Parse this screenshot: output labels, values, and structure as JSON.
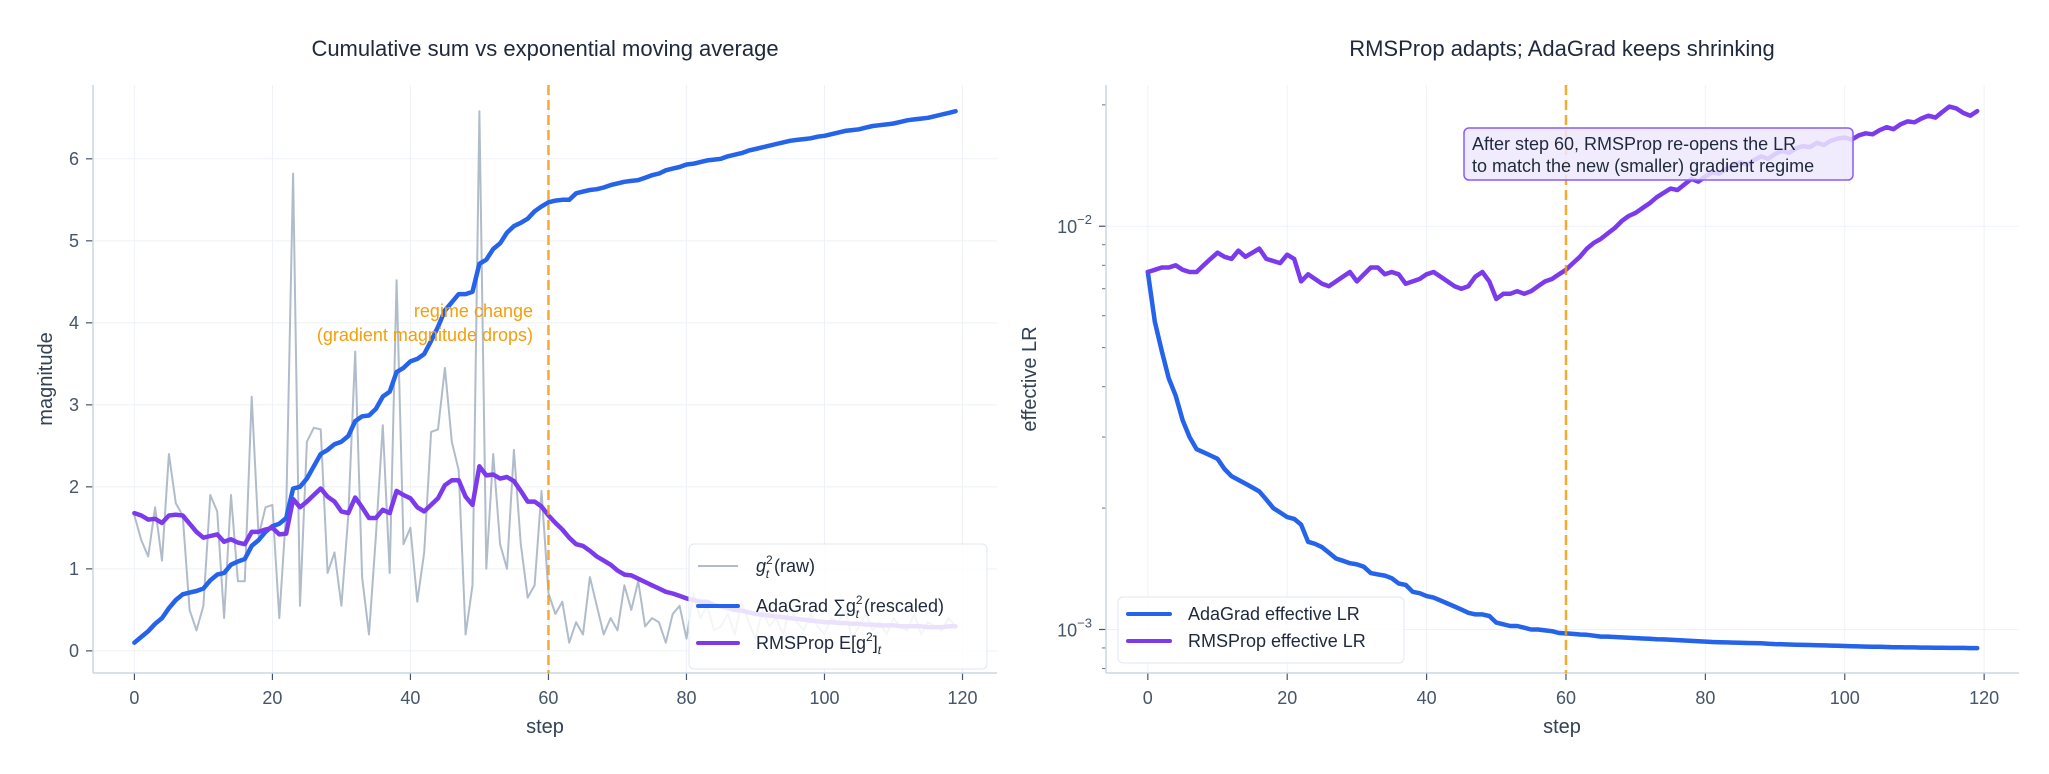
{
  "colors": {
    "raw": "#b1bccb",
    "adagrad": "#2563eb",
    "rmsprop": "#7c3aed",
    "regime": "#f59e0b",
    "grid": "#eef2f7",
    "axis": "#cbd5e1"
  },
  "chart_data": [
    {
      "type": "line",
      "title": "Cumulative sum vs exponential moving average",
      "xlabel": "step",
      "ylabel": "magnitude",
      "xlim": [
        -6,
        125
      ],
      "ylim": [
        -0.27,
        6.9
      ],
      "xticks": [
        0,
        20,
        40,
        60,
        80,
        100,
        120
      ],
      "yticks": [
        0,
        1,
        2,
        3,
        4,
        5,
        6
      ],
      "grid": true,
      "legend_position": "lower-right",
      "vline": {
        "x": 60,
        "label_line1": "regime change",
        "label_line2": "(gradient magnitude drops)"
      },
      "series": [
        {
          "name": "g_t^2 (raw)",
          "legend_main": "g",
          "legend_sup": "2",
          "legend_sub": "t",
          "legend_rest": " (raw)",
          "color_key": "raw",
          "values": [
            1.65,
            1.35,
            1.15,
            1.75,
            1.1,
            2.4,
            1.8,
            1.65,
            0.5,
            0.25,
            0.55,
            1.9,
            1.7,
            0.4,
            1.9,
            0.85,
            0.85,
            3.1,
            1.4,
            1.75,
            1.78,
            0.4,
            1.7,
            5.82,
            0.55,
            2.55,
            2.72,
            2.7,
            0.95,
            1.2,
            0.55,
            1.65,
            3.65,
            0.9,
            0.2,
            1.4,
            2.75,
            0.95,
            4.52,
            1.3,
            1.5,
            0.6,
            1.2,
            2.67,
            2.7,
            3.45,
            2.55,
            2.2,
            0.2,
            0.8,
            6.58,
            1.0,
            2.4,
            1.3,
            1.0,
            2.45,
            1.3,
            0.65,
            0.8,
            1.95,
            0.7,
            0.45,
            0.6,
            0.1,
            0.35,
            0.2,
            0.9,
            0.55,
            0.2,
            0.4,
            0.25,
            0.8,
            0.5,
            0.85,
            0.3,
            0.4,
            0.35,
            0.1,
            0.45,
            0.55,
            0.15,
            0.7,
            0.4,
            0.55,
            0.25,
            0.3,
            0.45,
            0.2,
            0.6,
            0.35,
            0.15,
            0.5,
            0.3,
            0.4,
            0.2,
            0.55,
            0.35,
            0.25,
            0.45,
            0.3,
            0.2,
            0.4,
            0.35,
            0.5,
            0.15,
            0.3,
            0.45,
            0.25,
            0.35,
            0.2,
            0.4,
            0.3,
            0.25,
            0.45,
            0.2,
            0.35,
            0.3,
            0.25,
            0.4,
            0.3
          ]
        },
        {
          "name": "AdaGrad ∑g_t^2 (rescaled)",
          "legend_main": "AdaGrad  ∑g",
          "legend_sup": "2",
          "legend_sub": "t",
          "legend_rest": " (rescaled)",
          "color_key": "adagrad",
          "values": [
            0.1,
            0.17,
            0.24,
            0.33,
            0.4,
            0.52,
            0.62,
            0.69,
            0.71,
            0.73,
            0.76,
            0.86,
            0.93,
            0.95,
            1.05,
            1.09,
            1.12,
            1.28,
            1.35,
            1.45,
            1.52,
            1.55,
            1.62,
            1.98,
            2.0,
            2.1,
            2.25,
            2.4,
            2.45,
            2.52,
            2.55,
            2.62,
            2.8,
            2.86,
            2.87,
            2.95,
            3.1,
            3.16,
            3.4,
            3.45,
            3.53,
            3.56,
            3.62,
            3.78,
            3.95,
            4.15,
            4.25,
            4.35,
            4.35,
            4.38,
            4.72,
            4.77,
            4.9,
            4.97,
            5.1,
            5.18,
            5.22,
            5.27,
            5.36,
            5.42,
            5.47,
            5.49,
            5.5,
            5.5,
            5.58,
            5.6,
            5.62,
            5.63,
            5.65,
            5.68,
            5.7,
            5.72,
            5.73,
            5.74,
            5.77,
            5.8,
            5.82,
            5.86,
            5.88,
            5.9,
            5.93,
            5.94,
            5.96,
            5.98,
            5.99,
            6.0,
            6.03,
            6.05,
            6.07,
            6.1,
            6.12,
            6.14,
            6.16,
            6.18,
            6.2,
            6.22,
            6.23,
            6.24,
            6.25,
            6.27,
            6.28,
            6.3,
            6.32,
            6.34,
            6.35,
            6.36,
            6.38,
            6.4,
            6.41,
            6.42,
            6.43,
            6.45,
            6.47,
            6.48,
            6.49,
            6.5,
            6.52,
            6.54,
            6.56,
            6.58
          ]
        },
        {
          "name": "RMSProp E[g^2]_t",
          "legend_main": "RMSProp  E[g",
          "legend_sup": "2",
          "legend_sub": "",
          "legend_rest": "]",
          "legend_tail_sub": "t",
          "color_key": "rmsprop",
          "values": [
            1.68,
            1.65,
            1.6,
            1.61,
            1.56,
            1.65,
            1.66,
            1.65,
            1.55,
            1.45,
            1.38,
            1.4,
            1.42,
            1.33,
            1.36,
            1.32,
            1.3,
            1.45,
            1.45,
            1.48,
            1.5,
            1.42,
            1.43,
            1.85,
            1.75,
            1.82,
            1.9,
            1.98,
            1.88,
            1.82,
            1.7,
            1.68,
            1.87,
            1.75,
            1.62,
            1.62,
            1.72,
            1.68,
            1.95,
            1.9,
            1.86,
            1.75,
            1.7,
            1.78,
            1.86,
            2.02,
            2.08,
            2.08,
            1.88,
            1.78,
            2.25,
            2.14,
            2.15,
            2.1,
            2.12,
            2.07,
            1.95,
            1.82,
            1.82,
            1.76,
            1.65,
            1.56,
            1.48,
            1.38,
            1.3,
            1.28,
            1.22,
            1.15,
            1.1,
            1.05,
            0.98,
            0.93,
            0.92,
            0.88,
            0.84,
            0.8,
            0.76,
            0.72,
            0.7,
            0.67,
            0.64,
            0.62,
            0.6,
            0.6,
            0.56,
            0.54,
            0.52,
            0.5,
            0.49,
            0.47,
            0.45,
            0.44,
            0.43,
            0.42,
            0.41,
            0.4,
            0.39,
            0.38,
            0.37,
            0.36,
            0.35,
            0.35,
            0.34,
            0.34,
            0.33,
            0.33,
            0.32,
            0.32,
            0.31,
            0.31,
            0.31,
            0.3,
            0.3,
            0.3,
            0.3,
            0.29,
            0.29,
            0.29,
            0.3,
            0.3
          ]
        }
      ]
    },
    {
      "type": "line",
      "title": "RMSProp adapts; AdaGrad keeps shrinking",
      "xlabel": "step",
      "ylabel": "effective LR",
      "yscale": "log",
      "xlim": [
        -6,
        125
      ],
      "ylim": [
        0.00078,
        0.0224
      ],
      "xticks": [
        0,
        20,
        40,
        60,
        80,
        100,
        120
      ],
      "yticks": [
        {
          "value": 0.01,
          "base": "10",
          "exp": "−2"
        },
        {
          "value": 0.001,
          "base": "10",
          "exp": "−3"
        }
      ],
      "grid": true,
      "legend_position": "lower-left",
      "vline": {
        "x": 60
      },
      "annotation": {
        "line1": "After step 60, RMSProp re-opens the LR",
        "line2": "to match the new (smaller) gradient regime"
      },
      "series": [
        {
          "name": "AdaGrad effective LR",
          "color_key": "adagrad",
          "values": [
            0.0077,
            0.0058,
            0.0049,
            0.0042,
            0.0038,
            0.0033,
            0.003,
            0.0028,
            0.00275,
            0.0027,
            0.00265,
            0.0025,
            0.0024,
            0.00235,
            0.0023,
            0.00225,
            0.0022,
            0.0021,
            0.002,
            0.00195,
            0.0019,
            0.00188,
            0.00182,
            0.00165,
            0.00163,
            0.0016,
            0.00155,
            0.0015,
            0.00148,
            0.00146,
            0.00145,
            0.00143,
            0.00138,
            0.00137,
            0.00136,
            0.00134,
            0.0013,
            0.00129,
            0.00124,
            0.00123,
            0.00121,
            0.0012,
            0.00118,
            0.00116,
            0.00114,
            0.00112,
            0.0011,
            0.00109,
            0.00109,
            0.00108,
            0.00104,
            0.00103,
            0.00102,
            0.00102,
            0.00101,
            0.001,
            0.001,
            0.000995,
            0.00099,
            0.00098,
            0.000978,
            0.000975,
            0.000972,
            0.00097,
            0.000965,
            0.00096,
            0.00096,
            0.000958,
            0.000956,
            0.000954,
            0.000952,
            0.00095,
            0.000948,
            0.000946,
            0.000945,
            0.000943,
            0.000941,
            0.000939,
            0.000937,
            0.000935,
            0.000933,
            0.000931,
            0.00093,
            0.000929,
            0.000928,
            0.000927,
            0.000926,
            0.000925,
            0.000924,
            0.000922,
            0.00092,
            0.000919,
            0.000918,
            0.000917,
            0.000916,
            0.000915,
            0.000914,
            0.000913,
            0.000912,
            0.000911,
            0.00091,
            0.000909,
            0.000908,
            0.000907,
            0.000906,
            0.000906,
            0.000905,
            0.000904,
            0.000904,
            0.000903,
            0.000903,
            0.000902,
            0.000902,
            0.000901,
            0.000901,
            0.0009,
            0.0009,
            0.0009,
            0.000899,
            0.000899
          ]
        },
        {
          "name": "RMSProp effective LR",
          "color_key": "rmsprop",
          "values": [
            0.0077,
            0.0078,
            0.0079,
            0.0079,
            0.008,
            0.0078,
            0.0077,
            0.0077,
            0.008,
            0.0083,
            0.0086,
            0.0084,
            0.0083,
            0.0087,
            0.0084,
            0.0086,
            0.0088,
            0.0083,
            0.0082,
            0.0081,
            0.0085,
            0.0083,
            0.0073,
            0.0076,
            0.0074,
            0.0072,
            0.0071,
            0.0073,
            0.0075,
            0.0077,
            0.0073,
            0.0076,
            0.0079,
            0.0079,
            0.0076,
            0.0077,
            0.0076,
            0.0072,
            0.0073,
            0.0074,
            0.0076,
            0.0077,
            0.0075,
            0.0073,
            0.0071,
            0.007,
            0.0071,
            0.0075,
            0.0077,
            0.0073,
            0.0066,
            0.0068,
            0.0068,
            0.0069,
            0.0068,
            0.0069,
            0.0071,
            0.0073,
            0.0074,
            0.0076,
            0.0078,
            0.0081,
            0.0084,
            0.0088,
            0.0091,
            0.0093,
            0.0096,
            0.0099,
            0.0103,
            0.0106,
            0.0108,
            0.0111,
            0.0114,
            0.0118,
            0.0121,
            0.0124,
            0.0123,
            0.0127,
            0.0131,
            0.0129,
            0.0133,
            0.0136,
            0.0135,
            0.0139,
            0.0141,
            0.0144,
            0.0142,
            0.0146,
            0.0149,
            0.0147,
            0.0151,
            0.0154,
            0.0152,
            0.0156,
            0.0158,
            0.0157,
            0.0161,
            0.0159,
            0.0163,
            0.0165,
            0.0166,
            0.0164,
            0.0168,
            0.017,
            0.0169,
            0.0173,
            0.0176,
            0.0174,
            0.0179,
            0.0182,
            0.0181,
            0.0185,
            0.0188,
            0.0186,
            0.0192,
            0.0198,
            0.0196,
            0.0191,
            0.0188,
            0.0193
          ]
        }
      ]
    }
  ]
}
